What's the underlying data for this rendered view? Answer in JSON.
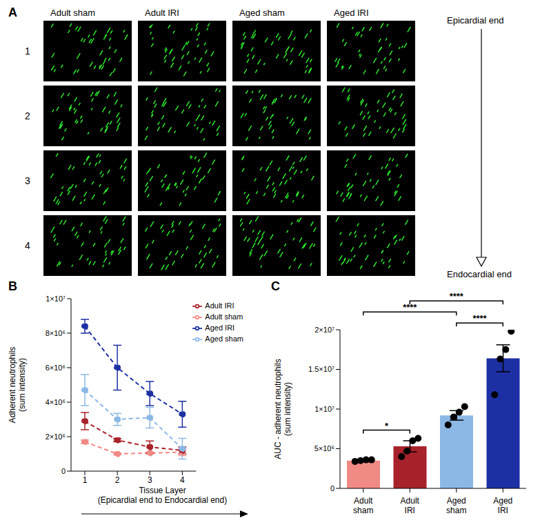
{
  "panel_labels": [
    "A",
    "B",
    "C"
  ],
  "image_grid": {
    "columns": [
      "Adult sham",
      "Adult IRI",
      "Aged sham",
      "Aged IRI"
    ],
    "rows": [
      "1",
      "2",
      "3",
      "4"
    ],
    "arrow_start": "Epicardial end",
    "arrow_end": "Endocardial end"
  },
  "chart_data": [
    {
      "type": "line",
      "categories": [
        "1",
        "2",
        "3",
        "4"
      ],
      "x_label": [
        "Tissue Layer",
        "(Epicardial end to Endocardial end)"
      ],
      "y_label": [
        "Adherent neutrophils",
        "(sum intensity)"
      ],
      "ylim": [
        0,
        10000000
      ],
      "yticks": [
        0,
        {
          "value": 2000000,
          "label": "2×10⁶"
        },
        {
          "value": 4000000,
          "label": "4×10⁶"
        },
        {
          "value": 6000000,
          "label": "6×10⁶"
        },
        {
          "value": 8000000,
          "label": "8×10⁶"
        },
        {
          "value": 10000000,
          "label": "1×10⁷"
        }
      ],
      "grid": false,
      "legend": "upper right",
      "line_style": "dashed",
      "marker": "circle",
      "series": [
        {
          "name": "Adult sham",
          "color": "#f08a84",
          "values": [
            1700000,
            1000000,
            1050000,
            1100000
          ],
          "errors": [
            100000,
            50000,
            50000,
            200000
          ]
        },
        {
          "name": "Adult IRI",
          "color": "#a8222b",
          "values": [
            2900000,
            1800000,
            1400000,
            1200000
          ],
          "errors": [
            500000,
            100000,
            350000,
            200000
          ]
        },
        {
          "name": "Aged sham",
          "color": "#8cb8e6",
          "values": [
            4700000,
            3000000,
            3100000,
            1300000
          ],
          "errors": [
            900000,
            350000,
            600000,
            600000
          ]
        },
        {
          "name": "Aged IRI",
          "color": "#1c2fa3",
          "values": [
            8400000,
            6000000,
            4500000,
            3300000
          ],
          "errors": [
            400000,
            1300000,
            700000,
            750000
          ]
        }
      ]
    },
    {
      "type": "bar",
      "categories": [
        "Adult sham",
        "Adult IRI",
        "Aged sham",
        "Aged IRI"
      ],
      "values": [
        3500000,
        5300000,
        9200000,
        16400000
      ],
      "errors": [
        100000,
        700000,
        600000,
        1700000
      ],
      "points": [
        [
          3400000,
          3500000,
          3600000,
          3600000
        ],
        [
          4000000,
          4700000,
          6000000,
          6300000
        ],
        [
          8000000,
          9000000,
          9600000,
          10300000
        ],
        [
          11800000,
          16300000,
          17500000,
          19800000
        ]
      ],
      "colors": [
        "#f08a84",
        "#a8222b",
        "#8cb8e6",
        "#1c2fa3"
      ],
      "y_label": [
        "AUC - adherent neutrophils",
        "(sum intensity)"
      ],
      "ylim": [
        0,
        20000000
      ],
      "yticks": [
        0,
        {
          "value": 5000000,
          "label": "5×10⁶"
        },
        {
          "value": 10000000,
          "label": "1×10⁷"
        },
        {
          "value": 15000000,
          "label": "1.5×10⁷"
        },
        {
          "value": 20000000,
          "label": "2×10⁷"
        }
      ],
      "grid": false,
      "annotations": [
        {
          "from": "Adult sham",
          "to": "Adult IRI",
          "label": "*"
        },
        {
          "from": "Adult sham",
          "to": "Aged sham",
          "label": "****"
        },
        {
          "from": "Adult IRI",
          "to": "Aged IRI",
          "label": "****"
        },
        {
          "from": "Aged sham",
          "to": "Aged IRI",
          "label": "****"
        }
      ]
    }
  ]
}
